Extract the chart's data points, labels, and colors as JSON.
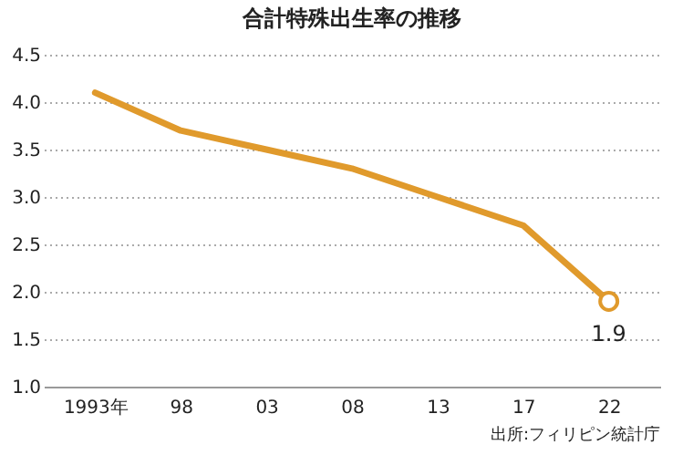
{
  "chart_data": {
    "type": "line",
    "title": "合計特殊出生率の推移",
    "categories": [
      "1993年",
      "98",
      "03",
      "08",
      "13",
      "17",
      "22"
    ],
    "series": [
      {
        "color": "#e09a2c",
        "values": [
          4.1,
          3.7,
          3.5,
          3.3,
          3.0,
          2.7,
          1.9
        ]
      },
      {
        "type": "scatter",
        "color": "#e09a2c",
        "x": [
          "22"
        ],
        "values": [
          1.9
        ],
        "value_labels": [
          "1.9"
        ]
      }
    ],
    "ylim": [
      1.0,
      4.5
    ],
    "yticks": [
      {
        "value": 1.0,
        "label": "1.0"
      },
      {
        "value": 1.5,
        "label": "1.5"
      },
      {
        "value": 2.0,
        "label": "2.0"
      },
      {
        "value": 2.5,
        "label": "2.5"
      },
      {
        "value": 3.0,
        "label": "3.0"
      },
      {
        "value": 3.5,
        "label": "3.5"
      },
      {
        "value": 4.0,
        "label": "4.0"
      },
      {
        "value": 4.5,
        "label": "4.5"
      }
    ],
    "grid": "y",
    "annotations": [
      "出所:フィリピン統計庁"
    ]
  }
}
